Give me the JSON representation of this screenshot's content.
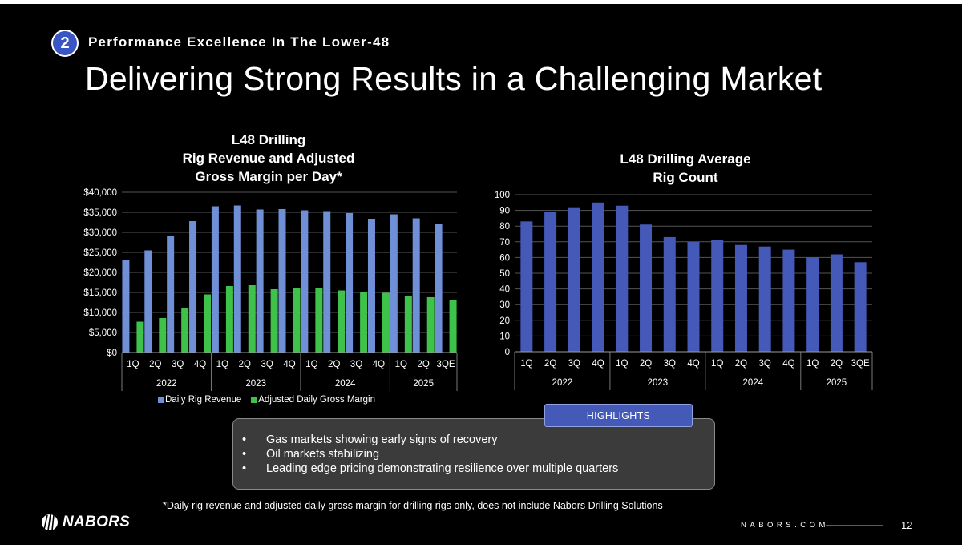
{
  "section": {
    "number": "2",
    "title": "Performance Excellence In The Lower-48"
  },
  "title": "Delivering Strong Results in a Challenging Market",
  "colors": {
    "bar_blue": "#6f8fd6",
    "bar_green": "#3ec24a",
    "bar_navy": "#4459b8",
    "accent": "#3a56c5"
  },
  "chart_data": [
    {
      "type": "bar",
      "title_lines": [
        "L48 Drilling",
        "Rig Revenue and Adjusted",
        "Gross Margin per Day*"
      ],
      "categories": [
        "1Q",
        "2Q",
        "3Q",
        "4Q",
        "1Q",
        "2Q",
        "3Q",
        "4Q",
        "1Q",
        "2Q",
        "3Q",
        "4Q",
        "1Q",
        "2Q",
        "3QE"
      ],
      "groups": [
        {
          "label": "2022",
          "count": 4
        },
        {
          "label": "2023",
          "count": 4
        },
        {
          "label": "2024",
          "count": 4
        },
        {
          "label": "2025",
          "count": 3
        }
      ],
      "series": [
        {
          "name": "Daily Rig Revenue",
          "color": "#6f8fd6",
          "values": [
            23000,
            25500,
            29200,
            32800,
            36500,
            36700,
            35700,
            35800,
            35500,
            35300,
            34800,
            33400,
            34500,
            33500,
            32100
          ]
        },
        {
          "name": "Adjusted Daily Gross Margin",
          "color": "#3ec24a",
          "values": [
            7700,
            8600,
            11000,
            14500,
            16600,
            16800,
            15800,
            16200,
            16000,
            15500,
            15000,
            14900,
            14200,
            13800,
            13200
          ]
        }
      ],
      "ylim": [
        0,
        40000
      ],
      "yticks": [
        "$0",
        "$5,000",
        "$10,000",
        "$15,000",
        "$20,000",
        "$25,000",
        "$30,000",
        "$35,000",
        "$40,000"
      ],
      "ytick_values": [
        0,
        5000,
        10000,
        15000,
        20000,
        25000,
        30000,
        35000,
        40000
      ],
      "legend": [
        "Daily Rig Revenue",
        "Adjusted Daily Gross Margin"
      ],
      "grid": true
    },
    {
      "type": "bar",
      "title_lines": [
        "L48 Drilling Average",
        "Rig Count"
      ],
      "categories": [
        "1Q",
        "2Q",
        "3Q",
        "4Q",
        "1Q",
        "2Q",
        "3Q",
        "4Q",
        "1Q",
        "2Q",
        "3Q",
        "4Q",
        "1Q",
        "2Q",
        "3QE"
      ],
      "groups": [
        {
          "label": "2022",
          "count": 4
        },
        {
          "label": "2023",
          "count": 4
        },
        {
          "label": "2024",
          "count": 4
        },
        {
          "label": "2025",
          "count": 3
        }
      ],
      "series": [
        {
          "name": "Average Rig Count",
          "color": "#4459b8",
          "values": [
            83,
            89,
            92,
            95,
            93,
            81,
            73,
            70,
            71,
            68,
            67,
            65,
            60,
            62,
            57
          ]
        }
      ],
      "ylim": [
        0,
        100
      ],
      "yticks": [
        "0",
        "10",
        "20",
        "30",
        "40",
        "50",
        "60",
        "70",
        "80",
        "90",
        "100"
      ],
      "ytick_values": [
        0,
        10,
        20,
        30,
        40,
        50,
        60,
        70,
        80,
        90,
        100
      ],
      "grid": true
    }
  ],
  "highlights": {
    "tab_label": "HIGHLIGHTS",
    "items": [
      "Gas markets showing early signs of recovery",
      "Oil markets stabilizing",
      "Leading edge pricing demonstrating resilience over multiple quarters"
    ]
  },
  "footnote": "*Daily rig revenue and adjusted daily gross margin for drilling rigs only, does not include Nabors Drilling Solutions",
  "footer": {
    "logo_text": "NABORS",
    "site": "NABORS.COM",
    "page": "12"
  }
}
